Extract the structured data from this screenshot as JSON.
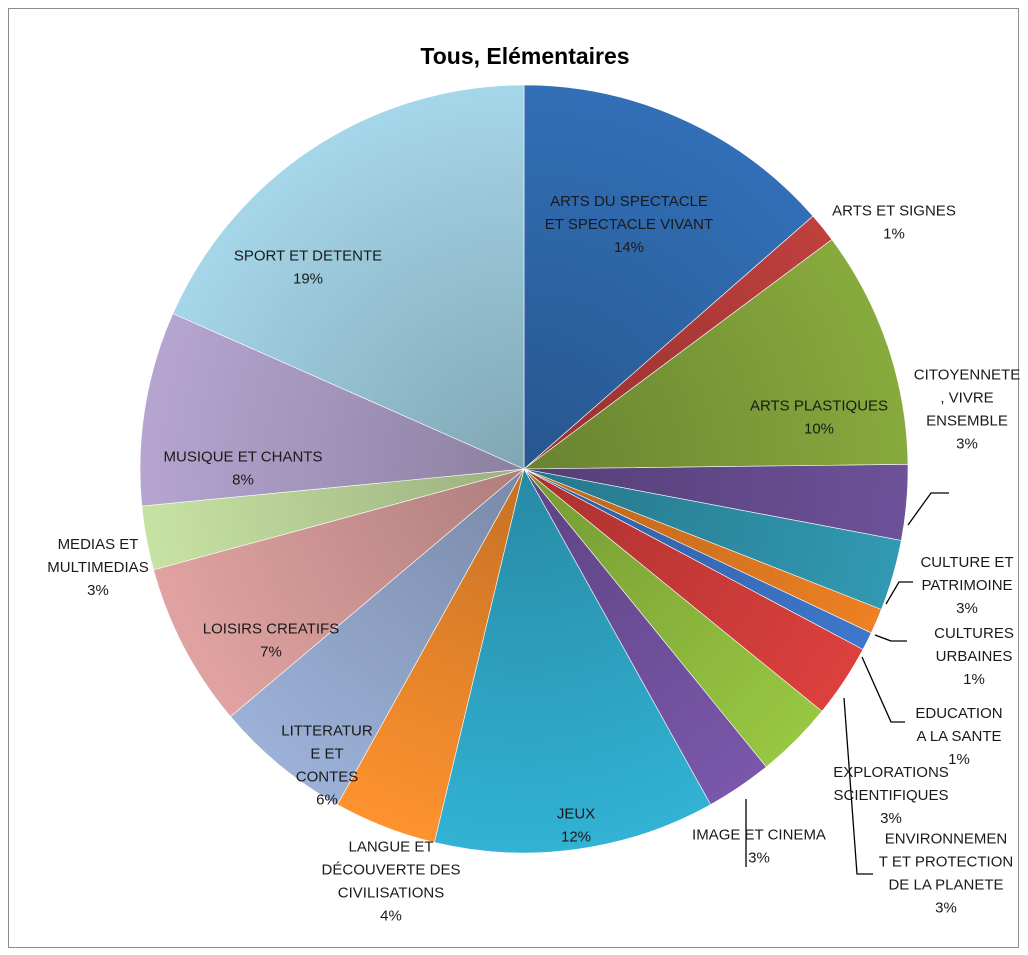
{
  "chart_data": {
    "type": "pie",
    "title": "Tous, Elémentaires",
    "slices": [
      {
        "label": "ARTS DU SPECTACLE ET SPECTACLE VIVANT",
        "pct_label": "14%",
        "value": 14.1,
        "color": "#2f69ad"
      },
      {
        "label": "ARTS ET SIGNES",
        "pct_label": "1%",
        "value": 1.3,
        "color": "#b43c3a"
      },
      {
        "label": "ARTS PLASTIQUES",
        "pct_label": "10%",
        "value": 10.4,
        "color": "#7fa03a"
      },
      {
        "label": "CITOYENNETE , VIVRE ENSEMBLE",
        "pct_label": "3%",
        "value": 3.3,
        "color": "#674c90"
      },
      {
        "label": "CULTURE ET PATRIMOINE",
        "pct_label": "3%",
        "value": 3.1,
        "color": "#2e90a8"
      },
      {
        "label": "CULTURES URBAINES",
        "pct_label": "1%",
        "value": 1.1,
        "color": "#e07a21"
      },
      {
        "label": "EDUCATION A LA SANTE",
        "pct_label": "1%",
        "value": 0.8,
        "color": "#3a70c0"
      },
      {
        "label": "ENVIRONNEMENT ET PROTECTION DE LA PLANETE",
        "pct_label": "3%",
        "value": 3.2,
        "color": "#d03c3a"
      },
      {
        "label": "EXPLORATIONS SCIENTIFIQUES",
        "pct_label": "3%",
        "value": 3.4,
        "color": "#8fbc3e"
      },
      {
        "label": "IMAGE ET CINEMA",
        "pct_label": "3%",
        "value": 2.9,
        "color": "#7352a0"
      },
      {
        "label": "JEUX",
        "pct_label": "12%",
        "value": 12.3,
        "color": "#2fa8c8"
      },
      {
        "label": "LANGUE ET DÉCOUVERTE DES CIVILISATIONS",
        "pct_label": "4%",
        "value": 4.5,
        "color": "#f08a2c"
      },
      {
        "label": "LITTERATURE ET CONTES",
        "pct_label": "6%",
        "value": 6.0,
        "color": "#93a7cc"
      },
      {
        "label": "LOISIRS CREATIFS",
        "pct_label": "7%",
        "value": 7.2,
        "color": "#d49a98"
      },
      {
        "label": "MEDIAS ET MULTIMEDIAS",
        "pct_label": "3%",
        "value": 2.8,
        "color": "#bcd69a"
      },
      {
        "label": "MUSIQUE ET CHANTS",
        "pct_label": "8%",
        "value": 8.5,
        "color": "#ab9cc4"
      },
      {
        "label": "SPORT ET DETENTE",
        "pct_label": "19%",
        "value": 19.1,
        "color": "#9ccadc"
      }
    ],
    "label_lines": [
      [
        "ARTS DU SPECTACLE",
        "ET SPECTACLE VIVANT",
        "14%"
      ],
      [
        "ARTS ET SIGNES",
        "1%"
      ],
      [
        "ARTS PLASTIQUES",
        "10%"
      ],
      [
        "CITOYENNETE",
        ", VIVRE",
        "ENSEMBLE",
        "3%"
      ],
      [
        "CULTURE ET",
        "PATRIMOINE",
        "3%"
      ],
      [
        "CULTURES",
        "URBAINES",
        "1%"
      ],
      [
        "EDUCATION",
        "A LA SANTE",
        "1%"
      ],
      [
        "ENVIRONNEMEN",
        "T ET PROTECTION",
        "DE LA PLANETE",
        "3%"
      ],
      [
        "EXPLORATIONS",
        "SCIENTIFIQUES",
        "3%"
      ],
      [
        "IMAGE ET CINEMA",
        "3%"
      ],
      [
        "JEUX",
        "12%"
      ],
      [
        "LANGUE ET",
        "DÉCOUVERTE DES",
        "CIVILISATIONS",
        "4%"
      ],
      [
        "LITTERATUR",
        "E ET",
        "CONTES",
        "6%"
      ],
      [
        "LOISIRS CREATIFS",
        "7%"
      ],
      [
        "MEDIAS ET",
        "MULTIMEDIAS",
        "3%"
      ],
      [
        "MUSIQUE ET CHANTS",
        "8%"
      ],
      [
        "SPORT ET DETENTE",
        "19%"
      ]
    ],
    "legend": "none"
  }
}
